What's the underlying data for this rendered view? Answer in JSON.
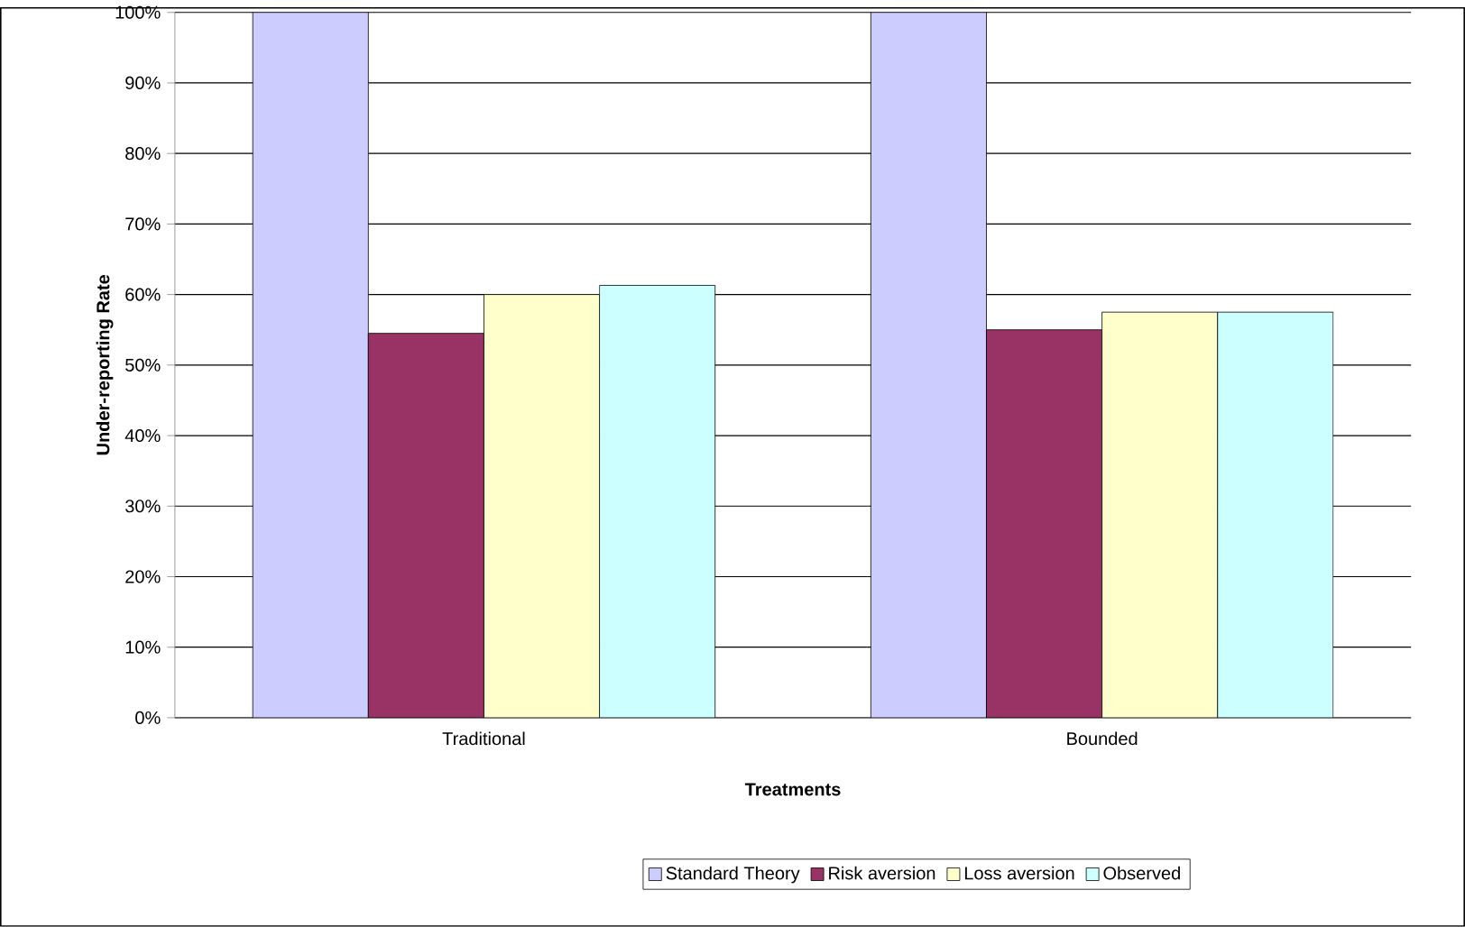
{
  "chart_data": {
    "type": "bar",
    "xlabel": "Treatments",
    "ylabel": "Under-reporting Rate",
    "categories": [
      "Traditional",
      "Bounded"
    ],
    "series": [
      {
        "name": "Standard Theory",
        "color": "#ccccff",
        "values": [
          100,
          100
        ]
      },
      {
        "name": "Risk aversion",
        "color": "#993366",
        "values": [
          54.5,
          55
        ]
      },
      {
        "name": "Loss aversion",
        "color": "#ffffcc",
        "values": [
          60,
          57.5
        ]
      },
      {
        "name": "Observed",
        "color": "#ccffff",
        "values": [
          61.3,
          57.5
        ]
      }
    ],
    "ylim": [
      0,
      100
    ],
    "yticks": [
      {
        "value": 0,
        "label": "0%"
      },
      {
        "value": 10,
        "label": "10%"
      },
      {
        "value": 20,
        "label": "20%"
      },
      {
        "value": 30,
        "label": "30%"
      },
      {
        "value": 40,
        "label": "40%"
      },
      {
        "value": 50,
        "label": "50%"
      },
      {
        "value": 60,
        "label": "60%"
      },
      {
        "value": 70,
        "label": "70%"
      },
      {
        "value": 80,
        "label": "80%"
      },
      {
        "value": 90,
        "label": "90%"
      },
      {
        "value": 100,
        "label": "100%"
      }
    ],
    "grid": "y",
    "legend": "bottom"
  }
}
